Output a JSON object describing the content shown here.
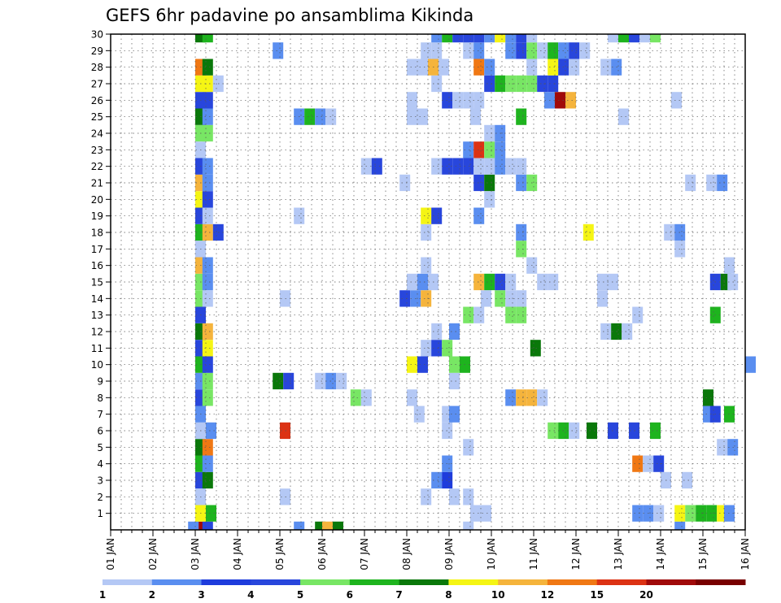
{
  "chart_data": {
    "type": "heatmap",
    "title": "GEFS 6hr padavine po ansamblima Kikinda",
    "y_tick_labels": [
      "1",
      "2",
      "3",
      "4",
      "5",
      "6",
      "7",
      "8",
      "9",
      "10",
      "11",
      "12",
      "13",
      "14",
      "15",
      "16",
      "17",
      "18",
      "19",
      "20",
      "21",
      "22",
      "23",
      "24",
      "25",
      "26",
      "27",
      "28",
      "29",
      "30"
    ],
    "y_range": [
      0,
      30
    ],
    "x_tick_labels": [
      "01 JAN",
      "02 JAN",
      "03 JAN",
      "04 JAN",
      "05 JAN",
      "06 JAN",
      "07 JAN",
      "08 JAN",
      "09 JAN",
      "10 JAN",
      "11 JAN",
      "12 JAN",
      "13 JAN",
      "14 JAN",
      "15 JAN",
      "16 JAN"
    ],
    "x_range_days": [
      1,
      16
    ],
    "grid": true,
    "colorbar": {
      "levels": [
        "1",
        "2",
        "3",
        "4",
        "5",
        "6",
        "7",
        "8",
        "10",
        "12",
        "15",
        "20"
      ],
      "colors": [
        "#b4c8f5",
        "#5a8ef0",
        "#1e3cdc",
        "#2846dc",
        "#78e664",
        "#1eb41e",
        "#0a780a",
        "#f5f514",
        "#f5b43c",
        "#f07814",
        "#dc3214",
        "#a00a0a",
        "#780000"
      ]
    },
    "cells_note": "each cell = [day_fraction_start(days from 01 JAN 00Z), member_row(0=bottom row below 1), color_index]",
    "cells": [
      [
        3.0,
        0,
        11
      ],
      [
        3.17,
        0,
        3
      ],
      [
        2.83,
        0,
        1
      ],
      [
        5.33,
        0,
        1
      ],
      [
        5.83,
        0,
        6
      ],
      [
        6.0,
        0,
        8
      ],
      [
        6.25,
        0,
        6
      ],
      [
        9.33,
        0,
        0
      ],
      [
        14.33,
        0,
        1
      ],
      [
        3.0,
        1,
        7
      ],
      [
        3.25,
        1,
        5
      ],
      [
        9.5,
        1,
        0
      ],
      [
        9.75,
        1,
        0
      ],
      [
        13.33,
        1,
        1
      ],
      [
        13.58,
        1,
        1
      ],
      [
        13.83,
        1,
        0
      ],
      [
        14.33,
        1,
        7
      ],
      [
        14.58,
        1,
        4
      ],
      [
        14.83,
        1,
        5
      ],
      [
        15.08,
        1,
        5
      ],
      [
        15.33,
        1,
        7
      ],
      [
        15.5,
        1,
        1
      ],
      [
        3.0,
        2,
        0
      ],
      [
        5.0,
        2,
        0
      ],
      [
        8.33,
        2,
        0
      ],
      [
        9.0,
        2,
        0
      ],
      [
        9.33,
        2,
        0
      ],
      [
        3.0,
        3,
        3
      ],
      [
        3.17,
        3,
        6
      ],
      [
        8.58,
        3,
        1
      ],
      [
        8.83,
        3,
        2
      ],
      [
        14.0,
        3,
        0
      ],
      [
        14.5,
        3,
        0
      ],
      [
        3.0,
        4,
        5
      ],
      [
        3.17,
        4,
        1
      ],
      [
        8.83,
        4,
        1
      ],
      [
        13.33,
        4,
        9
      ],
      [
        13.58,
        4,
        0
      ],
      [
        13.83,
        4,
        3
      ],
      [
        3.0,
        5,
        6
      ],
      [
        3.17,
        5,
        9
      ],
      [
        9.33,
        5,
        0
      ],
      [
        15.33,
        5,
        0
      ],
      [
        15.58,
        5,
        1
      ],
      [
        3.0,
        6,
        0
      ],
      [
        3.25,
        6,
        1
      ],
      [
        5.0,
        6,
        10
      ],
      [
        8.83,
        6,
        0
      ],
      [
        11.33,
        6,
        4
      ],
      [
        11.58,
        6,
        5
      ],
      [
        11.83,
        6,
        0
      ],
      [
        12.25,
        6,
        6
      ],
      [
        12.75,
        6,
        3
      ],
      [
        13.25,
        6,
        3
      ],
      [
        13.75,
        6,
        5
      ],
      [
        3.0,
        7,
        1
      ],
      [
        8.17,
        7,
        0
      ],
      [
        8.83,
        7,
        0
      ],
      [
        9.0,
        7,
        1
      ],
      [
        15.0,
        7,
        1
      ],
      [
        15.17,
        7,
        3
      ],
      [
        15.5,
        7,
        5
      ],
      [
        3.0,
        8,
        3
      ],
      [
        3.17,
        8,
        4
      ],
      [
        6.67,
        8,
        4
      ],
      [
        6.92,
        8,
        0
      ],
      [
        8.0,
        8,
        0
      ],
      [
        10.33,
        8,
        1
      ],
      [
        10.58,
        8,
        8
      ],
      [
        10.83,
        8,
        8
      ],
      [
        11.08,
        8,
        0
      ],
      [
        15.0,
        8,
        6
      ],
      [
        3.0,
        9,
        1
      ],
      [
        3.17,
        9,
        4
      ],
      [
        4.83,
        9,
        6
      ],
      [
        5.08,
        9,
        3
      ],
      [
        5.83,
        9,
        0
      ],
      [
        6.08,
        9,
        1
      ],
      [
        6.33,
        9,
        0
      ],
      [
        9.0,
        9,
        0
      ],
      [
        3.0,
        10,
        5
      ],
      [
        3.17,
        10,
        3
      ],
      [
        8.0,
        10,
        7
      ],
      [
        8.25,
        10,
        3
      ],
      [
        9.0,
        10,
        4
      ],
      [
        9.25,
        10,
        5
      ],
      [
        16.0,
        10,
        1
      ],
      [
        3.0,
        11,
        3
      ],
      [
        3.17,
        11,
        7
      ],
      [
        8.33,
        11,
        0
      ],
      [
        8.58,
        11,
        3
      ],
      [
        8.83,
        11,
        4
      ],
      [
        10.92,
        11,
        6
      ],
      [
        3.0,
        12,
        6
      ],
      [
        3.17,
        12,
        8
      ],
      [
        8.58,
        12,
        0
      ],
      [
        9.0,
        12,
        1
      ],
      [
        12.58,
        12,
        0
      ],
      [
        12.83,
        12,
        6
      ],
      [
        13.08,
        12,
        0
      ],
      [
        3.0,
        13,
        3
      ],
      [
        9.33,
        13,
        4
      ],
      [
        9.58,
        13,
        0
      ],
      [
        10.33,
        13,
        4
      ],
      [
        10.58,
        13,
        4
      ],
      [
        13.33,
        13,
        0
      ],
      [
        15.17,
        13,
        5
      ],
      [
        3.0,
        14,
        4
      ],
      [
        3.17,
        14,
        0
      ],
      [
        5.0,
        14,
        0
      ],
      [
        7.83,
        14,
        3
      ],
      [
        8.08,
        14,
        1
      ],
      [
        8.33,
        14,
        8
      ],
      [
        9.75,
        14,
        0
      ],
      [
        10.08,
        14,
        4
      ],
      [
        10.33,
        14,
        0
      ],
      [
        10.58,
        14,
        0
      ],
      [
        12.5,
        14,
        0
      ],
      [
        3.0,
        15,
        4
      ],
      [
        3.17,
        15,
        1
      ],
      [
        8.0,
        15,
        0
      ],
      [
        8.25,
        15,
        1
      ],
      [
        8.5,
        15,
        0
      ],
      [
        9.58,
        15,
        8
      ],
      [
        9.83,
        15,
        5
      ],
      [
        10.08,
        15,
        3
      ],
      [
        10.33,
        15,
        0
      ],
      [
        11.08,
        15,
        0
      ],
      [
        11.33,
        15,
        0
      ],
      [
        12.5,
        15,
        0
      ],
      [
        12.75,
        15,
        0
      ],
      [
        15.17,
        15,
        3
      ],
      [
        15.42,
        15,
        6
      ],
      [
        15.58,
        15,
        0
      ],
      [
        3.0,
        16,
        8
      ],
      [
        3.17,
        16,
        1
      ],
      [
        8.33,
        16,
        0
      ],
      [
        10.83,
        16,
        0
      ],
      [
        15.5,
        16,
        0
      ],
      [
        3.0,
        17,
        0
      ],
      [
        10.58,
        17,
        4
      ],
      [
        14.33,
        17,
        0
      ],
      [
        3.0,
        18,
        5
      ],
      [
        3.17,
        18,
        8
      ],
      [
        3.42,
        18,
        3
      ],
      [
        8.33,
        18,
        0
      ],
      [
        10.58,
        18,
        1
      ],
      [
        12.17,
        18,
        7
      ],
      [
        14.08,
        18,
        0
      ],
      [
        14.33,
        18,
        1
      ],
      [
        3.0,
        19,
        3
      ],
      [
        3.17,
        19,
        0
      ],
      [
        5.33,
        19,
        0
      ],
      [
        8.33,
        19,
        7
      ],
      [
        8.58,
        19,
        3
      ],
      [
        9.58,
        19,
        1
      ],
      [
        3.0,
        20,
        7
      ],
      [
        3.17,
        20,
        3
      ],
      [
        9.83,
        20,
        0
      ],
      [
        3.0,
        21,
        8
      ],
      [
        3.17,
        21,
        1
      ],
      [
        7.83,
        21,
        0
      ],
      [
        9.58,
        21,
        3
      ],
      [
        9.83,
        21,
        6
      ],
      [
        10.58,
        21,
        1
      ],
      [
        10.83,
        21,
        4
      ],
      [
        14.58,
        21,
        0
      ],
      [
        15.08,
        21,
        0
      ],
      [
        15.33,
        21,
        1
      ],
      [
        3.0,
        22,
        3
      ],
      [
        3.17,
        22,
        1
      ],
      [
        6.92,
        22,
        0
      ],
      [
        7.17,
        22,
        3
      ],
      [
        8.58,
        22,
        0
      ],
      [
        8.83,
        22,
        3
      ],
      [
        9.08,
        22,
        3
      ],
      [
        9.33,
        22,
        3
      ],
      [
        9.58,
        22,
        0
      ],
      [
        9.83,
        22,
        0
      ],
      [
        10.08,
        22,
        1
      ],
      [
        10.33,
        22,
        0
      ],
      [
        10.58,
        22,
        0
      ],
      [
        3.0,
        23,
        0
      ],
      [
        9.33,
        23,
        1
      ],
      [
        9.58,
        23,
        10
      ],
      [
        9.83,
        23,
        4
      ],
      [
        10.08,
        23,
        1
      ],
      [
        3.0,
        24,
        4
      ],
      [
        3.17,
        24,
        4
      ],
      [
        9.83,
        24,
        0
      ],
      [
        10.08,
        24,
        1
      ],
      [
        3.0,
        25,
        6
      ],
      [
        3.17,
        25,
        1
      ],
      [
        5.33,
        25,
        1
      ],
      [
        5.58,
        25,
        5
      ],
      [
        5.83,
        25,
        1
      ],
      [
        6.08,
        25,
        0
      ],
      [
        8.0,
        25,
        0
      ],
      [
        8.25,
        25,
        0
      ],
      [
        9.5,
        25,
        0
      ],
      [
        10.58,
        25,
        5
      ],
      [
        13.0,
        25,
        0
      ],
      [
        3.0,
        26,
        3
      ],
      [
        3.17,
        26,
        3
      ],
      [
        8.0,
        26,
        0
      ],
      [
        8.83,
        26,
        3
      ],
      [
        9.08,
        26,
        0
      ],
      [
        9.33,
        26,
        0
      ],
      [
        9.58,
        26,
        0
      ],
      [
        11.25,
        26,
        1
      ],
      [
        11.5,
        26,
        11
      ],
      [
        11.75,
        26,
        8
      ],
      [
        14.25,
        26,
        0
      ],
      [
        3.0,
        27,
        7
      ],
      [
        3.17,
        27,
        7
      ],
      [
        3.42,
        27,
        0
      ],
      [
        8.58,
        27,
        0
      ],
      [
        9.83,
        27,
        3
      ],
      [
        10.08,
        27,
        5
      ],
      [
        10.33,
        27,
        4
      ],
      [
        10.58,
        27,
        4
      ],
      [
        10.83,
        27,
        4
      ],
      [
        11.08,
        27,
        3
      ],
      [
        11.33,
        27,
        3
      ],
      [
        3.0,
        28,
        9
      ],
      [
        3.17,
        28,
        6
      ],
      [
        8.0,
        28,
        0
      ],
      [
        8.25,
        28,
        0
      ],
      [
        8.5,
        28,
        8
      ],
      [
        8.75,
        28,
        0
      ],
      [
        9.58,
        28,
        9
      ],
      [
        9.83,
        28,
        1
      ],
      [
        10.83,
        28,
        0
      ],
      [
        11.33,
        28,
        7
      ],
      [
        11.58,
        28,
        3
      ],
      [
        11.83,
        28,
        0
      ],
      [
        12.58,
        28,
        0
      ],
      [
        12.83,
        28,
        1
      ],
      [
        4.83,
        29,
        1
      ],
      [
        8.33,
        29,
        0
      ],
      [
        8.58,
        29,
        0
      ],
      [
        9.33,
        29,
        0
      ],
      [
        9.58,
        29,
        1
      ],
      [
        10.33,
        29,
        1
      ],
      [
        10.58,
        29,
        3
      ],
      [
        10.83,
        29,
        4
      ],
      [
        11.08,
        29,
        0
      ],
      [
        11.33,
        29,
        5
      ],
      [
        11.58,
        29,
        1
      ],
      [
        11.83,
        29,
        3
      ],
      [
        12.08,
        29,
        0
      ],
      [
        3.0,
        30,
        6
      ],
      [
        3.17,
        30,
        5
      ],
      [
        8.58,
        30,
        1
      ],
      [
        8.83,
        30,
        5
      ],
      [
        9.08,
        30,
        3
      ],
      [
        9.33,
        30,
        3
      ],
      [
        9.58,
        30,
        3
      ],
      [
        9.83,
        30,
        1
      ],
      [
        10.08,
        30,
        7
      ],
      [
        10.33,
        30,
        1
      ],
      [
        10.58,
        30,
        3
      ],
      [
        10.83,
        30,
        0
      ],
      [
        12.75,
        30,
        0
      ],
      [
        13.0,
        30,
        5
      ],
      [
        13.25,
        30,
        3
      ],
      [
        13.5,
        30,
        0
      ],
      [
        13.75,
        30,
        4
      ]
    ]
  }
}
